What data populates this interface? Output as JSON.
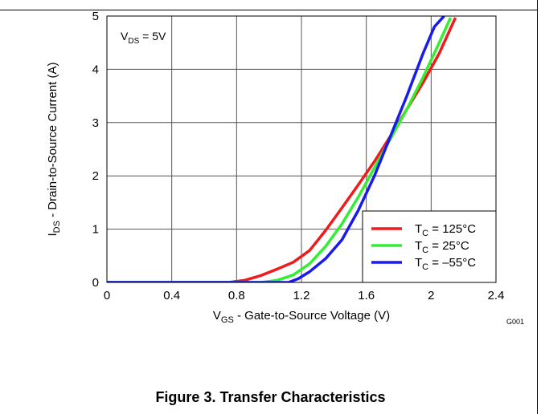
{
  "chart_data": {
    "type": "line",
    "xlabel_main": "V",
    "xlabel_sub": "GS",
    "xlabel_rest": " - Gate-to-Source Voltage (V)",
    "ylabel_main": "I",
    "ylabel_sub": "DS",
    "ylabel_rest": " - Drain-to-Source Current (A)",
    "xlim": [
      0,
      2.4
    ],
    "ylim": [
      0,
      5
    ],
    "x_ticks": [
      "0",
      "0.4",
      "0.8",
      "1.2",
      "1.6",
      "2",
      "2.4"
    ],
    "y_ticks": [
      "0",
      "1",
      "2",
      "3",
      "4",
      "5"
    ],
    "grid": true,
    "legend_position": "bottom-right",
    "annotation": {
      "main": "V",
      "sub": "DS",
      "rest": " = 5V"
    },
    "figure_code": "G001",
    "series": [
      {
        "name": "T_C = 125°C",
        "legend_main": "T",
        "legend_sub": "C",
        "legend_rest": " = 125°C",
        "color": "#ee1c1c",
        "x": [
          0,
          0.75,
          0.85,
          0.95,
          1.05,
          1.15,
          1.25,
          1.35,
          1.45,
          1.55,
          1.65,
          1.75,
          1.85,
          1.95,
          2.05,
          2.15
        ],
        "y": [
          0,
          0,
          0.04,
          0.13,
          0.25,
          0.38,
          0.6,
          0.98,
          1.4,
          1.83,
          2.27,
          2.75,
          3.25,
          3.75,
          4.3,
          4.97
        ]
      },
      {
        "name": "T_C = 25°C",
        "legend_main": "T",
        "legend_sub": "C",
        "legend_rest": " = 25°C",
        "color": "#33ee33",
        "x": [
          0,
          0.95,
          1.05,
          1.15,
          1.25,
          1.35,
          1.45,
          1.55,
          1.65,
          1.75,
          1.85,
          1.95,
          2.05,
          2.12
        ],
        "y": [
          0,
          0,
          0.04,
          0.14,
          0.35,
          0.68,
          1.1,
          1.6,
          2.15,
          2.7,
          3.25,
          3.85,
          4.5,
          4.97
        ]
      },
      {
        "name": "T_C = –55°C",
        "legend_main": "T",
        "legend_sub": "C",
        "legend_rest": " = –55°C",
        "color": "#1a1aee",
        "x": [
          0,
          1.12,
          1.18,
          1.25,
          1.35,
          1.45,
          1.55,
          1.65,
          1.75,
          1.85,
          1.95,
          2.02,
          2.08
        ],
        "y": [
          0,
          0,
          0.07,
          0.2,
          0.45,
          0.8,
          1.35,
          2.0,
          2.75,
          3.5,
          4.3,
          4.8,
          5.0
        ]
      }
    ]
  },
  "caption": "Figure 3. Transfer Characteristics"
}
